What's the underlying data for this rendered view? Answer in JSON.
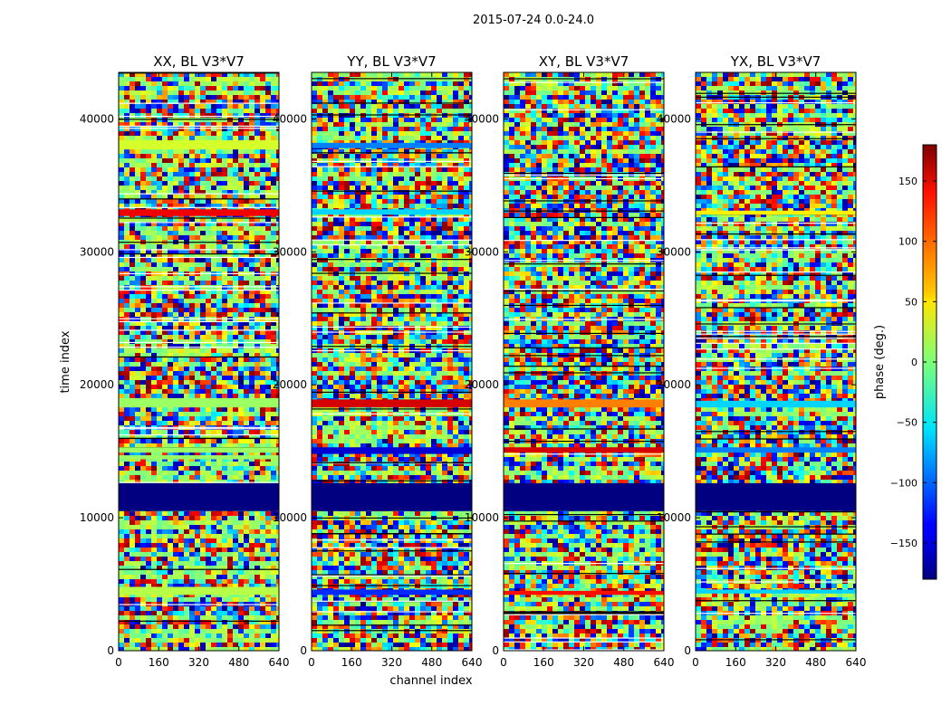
{
  "figure": {
    "suptitle": "2015-07-24 0.0-24.0"
  },
  "chart_data": {
    "type": "heatmap",
    "xlabel": "channel index",
    "ylabel": "time index",
    "xlim": [
      0,
      640
    ],
    "ylim": [
      0,
      43500
    ],
    "xticks": [
      0,
      160,
      320,
      480,
      640
    ],
    "yticks": [
      0,
      10000,
      20000,
      30000,
      40000
    ],
    "x_tick_labels": [
      "0",
      "160",
      "320",
      "480",
      "640"
    ],
    "y_tick_labels": [
      "0",
      "10000",
      "20000",
      "30000",
      "40000"
    ],
    "panels": [
      {
        "title": "XX, BL V3*V7",
        "bands": [
          {
            "y0": 10500,
            "y1": 12600,
            "phase": -180
          },
          {
            "y0": 4200,
            "y1": 4800,
            "phase": 20
          },
          {
            "y0": 14400,
            "y1": 14700,
            "phase": 10
          },
          {
            "y0": 14900,
            "y1": 15300,
            "phase": 10
          },
          {
            "y0": 18300,
            "y1": 19000,
            "phase": 10
          },
          {
            "y0": 32700,
            "y1": 33200,
            "phase": 140
          },
          {
            "y0": 37700,
            "y1": 38400,
            "phase": 30
          }
        ]
      },
      {
        "title": "YY, BL V3*V7",
        "bands": [
          {
            "y0": 10500,
            "y1": 12600,
            "phase": -180
          },
          {
            "y0": 4200,
            "y1": 4600,
            "phase": -120
          },
          {
            "y0": 14800,
            "y1": 15300,
            "phase": -150
          },
          {
            "y0": 18300,
            "y1": 18900,
            "phase": 150
          },
          {
            "y0": 32800,
            "y1": 33200,
            "phase": -60
          },
          {
            "y0": 37800,
            "y1": 38200,
            "phase": -90
          }
        ]
      },
      {
        "title": "XY, BL V3*V7",
        "bands": [
          {
            "y0": 10500,
            "y1": 12600,
            "phase": -180
          },
          {
            "y0": 4200,
            "y1": 4500,
            "phase": 130
          },
          {
            "y0": 14900,
            "y1": 15300,
            "phase": 150
          },
          {
            "y0": 18300,
            "y1": 18900,
            "phase": 90
          }
        ]
      },
      {
        "title": "YX, BL V3*V7",
        "bands": [
          {
            "y0": 10500,
            "y1": 12600,
            "phase": -180
          },
          {
            "y0": 4300,
            "y1": 4600,
            "phase": -60
          },
          {
            "y0": 14900,
            "y1": 15300,
            "phase": -90
          },
          {
            "y0": 18300,
            "y1": 18800,
            "phase": -60
          },
          {
            "y0": 32800,
            "y1": 33100,
            "phase": 50
          }
        ]
      }
    ],
    "colorbar": {
      "label": "phase (deg.)",
      "range": [
        -180,
        180
      ],
      "ticks": [
        150,
        100,
        50,
        0,
        -50,
        -100,
        -150
      ],
      "tick_labels": [
        "150",
        "100",
        "50",
        "0",
        "−50",
        "−100",
        "−150"
      ],
      "colormap": "jet"
    }
  },
  "colors": {
    "band_navy": "#00007f",
    "axes": "#000000",
    "background": "#ffffff"
  }
}
